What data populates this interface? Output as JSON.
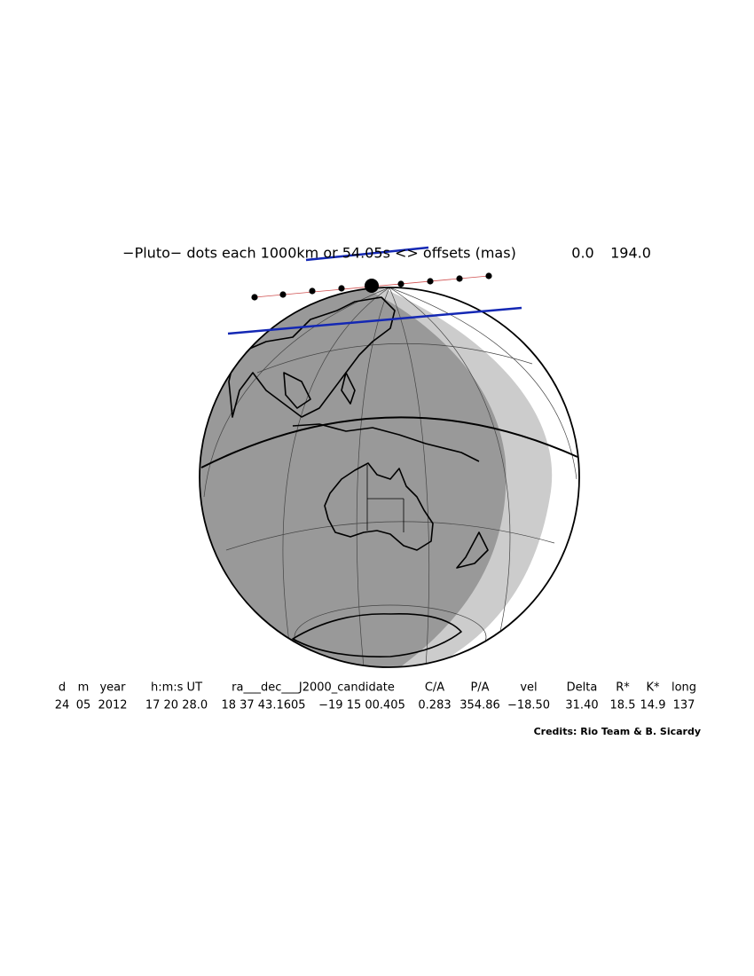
{
  "title": {
    "text": "−Pluto− dots each 1000km or 54.05s <> offsets (mas)",
    "offset_x": "0.0",
    "offset_y": "194.0"
  },
  "table": {
    "headers": [
      "d",
      "m",
      "year",
      "h:m:s UT",
      "ra___dec___J2000_candidate",
      "C/A",
      "P/A",
      "vel",
      "Delta",
      "R*",
      "K*",
      "long"
    ],
    "values": [
      "24",
      "05",
      "2012",
      "17 20 28.0",
      "18 37 43.1605",
      "−19 15 00.405",
      "0.283",
      "354.86",
      "−18.50",
      "31.40",
      "18.5",
      "14.9",
      "137"
    ]
  },
  "credits": "Credits: Rio Team & B. Sicardy"
}
